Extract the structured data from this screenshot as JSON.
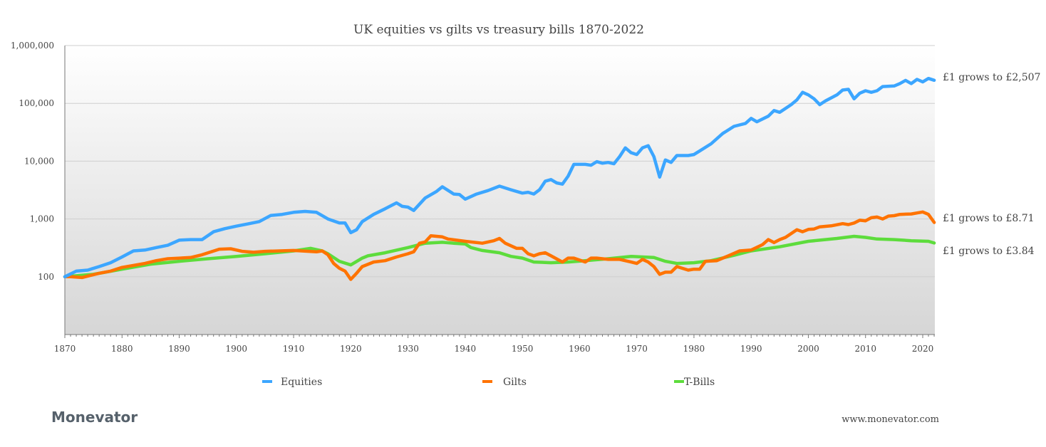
{
  "chart_data": {
    "type": "line",
    "title": "UK equities vs gilts vs treasury bills 1870-2022",
    "xlabel": "",
    "ylabel": "",
    "y_scale": "log",
    "ylim": [
      10,
      1000000
    ],
    "xlim": [
      1870,
      2022
    ],
    "grid": true,
    "legend_placement": "bottom",
    "y_ticks": [
      "1,000,000",
      "100,000",
      "10,000",
      "1,000",
      "100"
    ],
    "y_tick_values": [
      1000000,
      100000,
      10000,
      1000,
      100
    ],
    "x_ticks": [
      "1870",
      "1880",
      "1890",
      "1900",
      "1910",
      "1920",
      "1930",
      "1940",
      "1950",
      "1960",
      "1970",
      "1980",
      "1990",
      "2000",
      "2010",
      "2020"
    ],
    "series": [
      {
        "name": "Equities",
        "color": "#3ca6ff",
        "end_label": "£1 grows to £2,507",
        "x": [
          1870,
          1872,
          1874,
          1876,
          1878,
          1880,
          1882,
          1884,
          1886,
          1888,
          1890,
          1892,
          1894,
          1896,
          1898,
          1900,
          1902,
          1904,
          1906,
          1908,
          1910,
          1912,
          1914,
          1916,
          1918,
          1919,
          1920,
          1921,
          1922,
          1924,
          1926,
          1928,
          1929,
          1930,
          1931,
          1933,
          1935,
          1936,
          1938,
          1939,
          1940,
          1942,
          1944,
          1946,
          1948,
          1950,
          1951,
          1952,
          1953,
          1954,
          1955,
          1956,
          1957,
          1958,
          1959,
          1961,
          1962,
          1963,
          1964,
          1965,
          1966,
          1967,
          1968,
          1969,
          1970,
          1971,
          1972,
          1973,
          1974,
          1975,
          1976,
          1977,
          1979,
          1980,
          1981,
          1983,
          1985,
          1987,
          1989,
          1990,
          1991,
          1993,
          1994,
          1995,
          1997,
          1998,
          1999,
          2000,
          2001,
          2002,
          2003,
          2005,
          2006,
          2007,
          2008,
          2009,
          2010,
          2011,
          2012,
          2013,
          2015,
          2016,
          2017,
          2018,
          2019,
          2020,
          2021,
          2022
        ],
        "y": [
          100,
          125,
          130,
          150,
          175,
          220,
          280,
          290,
          320,
          350,
          430,
          440,
          440,
          600,
          680,
          750,
          820,
          900,
          1150,
          1200,
          1300,
          1350,
          1300,
          1000,
          850,
          850,
          580,
          650,
          900,
          1200,
          1500,
          1900,
          1650,
          1600,
          1400,
          2300,
          3000,
          3600,
          2700,
          2650,
          2200,
          2700,
          3100,
          3700,
          3200,
          2800,
          2900,
          2700,
          3200,
          4500,
          4800,
          4200,
          4000,
          5500,
          8800,
          8800,
          8500,
          9800,
          9200,
          9500,
          9000,
          12000,
          17000,
          14000,
          13000,
          17000,
          18500,
          12000,
          5300,
          10500,
          9500,
          12500,
          12500,
          13000,
          15000,
          20000,
          30000,
          40000,
          45000,
          55000,
          48000,
          60000,
          75000,
          70000,
          95000,
          115000,
          155000,
          140000,
          120000,
          95000,
          110000,
          140000,
          170000,
          175000,
          120000,
          150000,
          165000,
          155000,
          165000,
          195000,
          200000,
          220000,
          250000,
          220000,
          260000,
          235000,
          270000,
          250700
        ]
      },
      {
        "name": "Gilts",
        "color": "#ff7300",
        "end_label": "£1 grows to £8.71",
        "x": [
          1870,
          1871,
          1873,
          1876,
          1878,
          1880,
          1884,
          1886,
          1888,
          1892,
          1894,
          1897,
          1899,
          1901,
          1903,
          1905,
          1910,
          1914,
          1915,
          1916,
          1917,
          1918,
          1919,
          1920,
          1921,
          1922,
          1924,
          1926,
          1928,
          1930,
          1931,
          1932,
          1933,
          1934,
          1936,
          1937,
          1940,
          1943,
          1945,
          1946,
          1947,
          1949,
          1950,
          1951,
          1952,
          1953,
          1954,
          1955,
          1957,
          1958,
          1959,
          1961,
          1962,
          1963,
          1965,
          1967,
          1969,
          1970,
          1971,
          1972,
          1973,
          1974,
          1975,
          1976,
          1977,
          1979,
          1980,
          1981,
          1982,
          1984,
          1986,
          1988,
          1990,
          1992,
          1993,
          1994,
          1995,
          1996,
          1998,
          1999,
          2000,
          2001,
          2002,
          2004,
          2006,
          2007,
          2008,
          2009,
          2010,
          2011,
          2012,
          2013,
          2014,
          2015,
          2016,
          2018,
          2019,
          2020,
          2021,
          2022
        ],
        "y": [
          100,
          100,
          97,
          115,
          125,
          145,
          170,
          190,
          205,
          215,
          240,
          300,
          305,
          275,
          265,
          275,
          285,
          270,
          280,
          240,
          170,
          140,
          125,
          90,
          115,
          150,
          180,
          190,
          220,
          250,
          270,
          380,
          400,
          510,
          490,
          450,
          410,
          380,
          420,
          460,
          380,
          310,
          310,
          250,
          230,
          250,
          260,
          230,
          180,
          210,
          210,
          180,
          210,
          210,
          200,
          200,
          180,
          170,
          200,
          180,
          150,
          110,
          120,
          120,
          150,
          130,
          135,
          135,
          185,
          190,
          230,
          280,
          290,
          360,
          440,
          390,
          440,
          480,
          650,
          600,
          660,
          670,
          730,
          760,
          830,
          800,
          850,
          950,
          930,
          1050,
          1080,
          1000,
          1120,
          1140,
          1200,
          1220,
          1270,
          1320,
          1200,
          871
        ]
      },
      {
        "name": "T-Bills",
        "color": "#5ddc3c",
        "end_label": "£1 grows to £3.84",
        "x": [
          1870,
          1875,
          1880,
          1885,
          1890,
          1895,
          1900,
          1905,
          1910,
          1913,
          1915,
          1916,
          1918,
          1920,
          1922,
          1923,
          1926,
          1930,
          1933,
          1936,
          1938,
          1940,
          1941,
          1943,
          1946,
          1948,
          1950,
          1952,
          1955,
          1958,
          1961,
          1965,
          1969,
          1971,
          1973,
          1975,
          1977,
          1980,
          1983,
          1987,
          1990,
          1995,
          2000,
          2005,
          2008,
          2010,
          2012,
          2015,
          2018,
          2021,
          2022
        ],
        "y": [
          100,
          110,
          135,
          165,
          185,
          205,
          225,
          250,
          280,
          310,
          280,
          250,
          185,
          160,
          210,
          230,
          260,
          320,
          380,
          395,
          380,
          370,
          320,
          285,
          260,
          225,
          210,
          180,
          175,
          180,
          190,
          205,
          225,
          220,
          215,
          185,
          170,
          175,
          190,
          235,
          280,
          330,
          410,
          460,
          500,
          480,
          450,
          440,
          420,
          410,
          384
        ]
      }
    ]
  },
  "footer": {
    "logo": "Monevator",
    "url": "www.monevator.com"
  }
}
